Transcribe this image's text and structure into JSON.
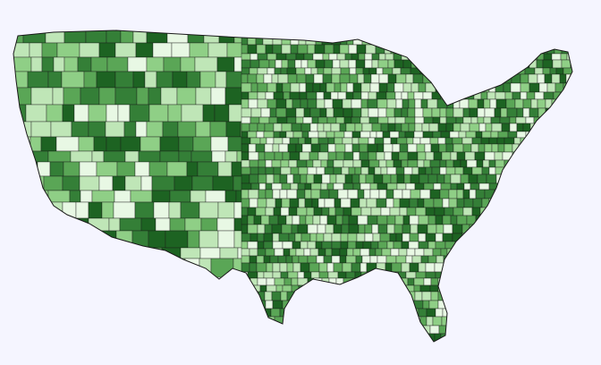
{
  "map": {
    "palette": [
      "#e8f8e4",
      "#bfe6b7",
      "#8fcf86",
      "#5aa656",
      "#347f37",
      "#1d6322"
    ],
    "background": "#f5f5ff",
    "border": "#1a1a1a"
  }
}
